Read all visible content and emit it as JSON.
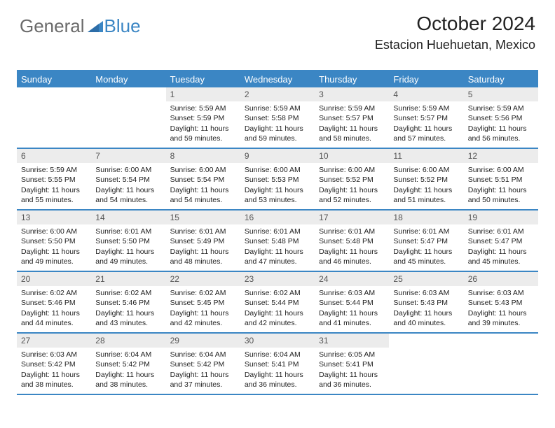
{
  "logo": {
    "text1": "General",
    "text2": "Blue"
  },
  "title": {
    "month": "October 2024",
    "location": "Estacion Huehuetan, Mexico"
  },
  "colors": {
    "accent": "#3b86c4",
    "daynum_bg": "#ececec",
    "text": "#222222",
    "logo_gray": "#6a6a6a"
  },
  "dayHeaders": [
    "Sunday",
    "Monday",
    "Tuesday",
    "Wednesday",
    "Thursday",
    "Friday",
    "Saturday"
  ],
  "weeks": [
    [
      {
        "empty": true
      },
      {
        "empty": true
      },
      {
        "num": "1",
        "sunrise": "Sunrise: 5:59 AM",
        "sunset": "Sunset: 5:59 PM",
        "daylight": "Daylight: 11 hours and 59 minutes."
      },
      {
        "num": "2",
        "sunrise": "Sunrise: 5:59 AM",
        "sunset": "Sunset: 5:58 PM",
        "daylight": "Daylight: 11 hours and 59 minutes."
      },
      {
        "num": "3",
        "sunrise": "Sunrise: 5:59 AM",
        "sunset": "Sunset: 5:57 PM",
        "daylight": "Daylight: 11 hours and 58 minutes."
      },
      {
        "num": "4",
        "sunrise": "Sunrise: 5:59 AM",
        "sunset": "Sunset: 5:57 PM",
        "daylight": "Daylight: 11 hours and 57 minutes."
      },
      {
        "num": "5",
        "sunrise": "Sunrise: 5:59 AM",
        "sunset": "Sunset: 5:56 PM",
        "daylight": "Daylight: 11 hours and 56 minutes."
      }
    ],
    [
      {
        "num": "6",
        "sunrise": "Sunrise: 5:59 AM",
        "sunset": "Sunset: 5:55 PM",
        "daylight": "Daylight: 11 hours and 55 minutes."
      },
      {
        "num": "7",
        "sunrise": "Sunrise: 6:00 AM",
        "sunset": "Sunset: 5:54 PM",
        "daylight": "Daylight: 11 hours and 54 minutes."
      },
      {
        "num": "8",
        "sunrise": "Sunrise: 6:00 AM",
        "sunset": "Sunset: 5:54 PM",
        "daylight": "Daylight: 11 hours and 54 minutes."
      },
      {
        "num": "9",
        "sunrise": "Sunrise: 6:00 AM",
        "sunset": "Sunset: 5:53 PM",
        "daylight": "Daylight: 11 hours and 53 minutes."
      },
      {
        "num": "10",
        "sunrise": "Sunrise: 6:00 AM",
        "sunset": "Sunset: 5:52 PM",
        "daylight": "Daylight: 11 hours and 52 minutes."
      },
      {
        "num": "11",
        "sunrise": "Sunrise: 6:00 AM",
        "sunset": "Sunset: 5:52 PM",
        "daylight": "Daylight: 11 hours and 51 minutes."
      },
      {
        "num": "12",
        "sunrise": "Sunrise: 6:00 AM",
        "sunset": "Sunset: 5:51 PM",
        "daylight": "Daylight: 11 hours and 50 minutes."
      }
    ],
    [
      {
        "num": "13",
        "sunrise": "Sunrise: 6:00 AM",
        "sunset": "Sunset: 5:50 PM",
        "daylight": "Daylight: 11 hours and 49 minutes."
      },
      {
        "num": "14",
        "sunrise": "Sunrise: 6:01 AM",
        "sunset": "Sunset: 5:50 PM",
        "daylight": "Daylight: 11 hours and 49 minutes."
      },
      {
        "num": "15",
        "sunrise": "Sunrise: 6:01 AM",
        "sunset": "Sunset: 5:49 PM",
        "daylight": "Daylight: 11 hours and 48 minutes."
      },
      {
        "num": "16",
        "sunrise": "Sunrise: 6:01 AM",
        "sunset": "Sunset: 5:48 PM",
        "daylight": "Daylight: 11 hours and 47 minutes."
      },
      {
        "num": "17",
        "sunrise": "Sunrise: 6:01 AM",
        "sunset": "Sunset: 5:48 PM",
        "daylight": "Daylight: 11 hours and 46 minutes."
      },
      {
        "num": "18",
        "sunrise": "Sunrise: 6:01 AM",
        "sunset": "Sunset: 5:47 PM",
        "daylight": "Daylight: 11 hours and 45 minutes."
      },
      {
        "num": "19",
        "sunrise": "Sunrise: 6:01 AM",
        "sunset": "Sunset: 5:47 PM",
        "daylight": "Daylight: 11 hours and 45 minutes."
      }
    ],
    [
      {
        "num": "20",
        "sunrise": "Sunrise: 6:02 AM",
        "sunset": "Sunset: 5:46 PM",
        "daylight": "Daylight: 11 hours and 44 minutes."
      },
      {
        "num": "21",
        "sunrise": "Sunrise: 6:02 AM",
        "sunset": "Sunset: 5:46 PM",
        "daylight": "Daylight: 11 hours and 43 minutes."
      },
      {
        "num": "22",
        "sunrise": "Sunrise: 6:02 AM",
        "sunset": "Sunset: 5:45 PM",
        "daylight": "Daylight: 11 hours and 42 minutes."
      },
      {
        "num": "23",
        "sunrise": "Sunrise: 6:02 AM",
        "sunset": "Sunset: 5:44 PM",
        "daylight": "Daylight: 11 hours and 42 minutes."
      },
      {
        "num": "24",
        "sunrise": "Sunrise: 6:03 AM",
        "sunset": "Sunset: 5:44 PM",
        "daylight": "Daylight: 11 hours and 41 minutes."
      },
      {
        "num": "25",
        "sunrise": "Sunrise: 6:03 AM",
        "sunset": "Sunset: 5:43 PM",
        "daylight": "Daylight: 11 hours and 40 minutes."
      },
      {
        "num": "26",
        "sunrise": "Sunrise: 6:03 AM",
        "sunset": "Sunset: 5:43 PM",
        "daylight": "Daylight: 11 hours and 39 minutes."
      }
    ],
    [
      {
        "num": "27",
        "sunrise": "Sunrise: 6:03 AM",
        "sunset": "Sunset: 5:42 PM",
        "daylight": "Daylight: 11 hours and 38 minutes."
      },
      {
        "num": "28",
        "sunrise": "Sunrise: 6:04 AM",
        "sunset": "Sunset: 5:42 PM",
        "daylight": "Daylight: 11 hours and 38 minutes."
      },
      {
        "num": "29",
        "sunrise": "Sunrise: 6:04 AM",
        "sunset": "Sunset: 5:42 PM",
        "daylight": "Daylight: 11 hours and 37 minutes."
      },
      {
        "num": "30",
        "sunrise": "Sunrise: 6:04 AM",
        "sunset": "Sunset: 5:41 PM",
        "daylight": "Daylight: 11 hours and 36 minutes."
      },
      {
        "num": "31",
        "sunrise": "Sunrise: 6:05 AM",
        "sunset": "Sunset: 5:41 PM",
        "daylight": "Daylight: 11 hours and 36 minutes."
      },
      {
        "empty": true
      },
      {
        "empty": true
      }
    ]
  ]
}
